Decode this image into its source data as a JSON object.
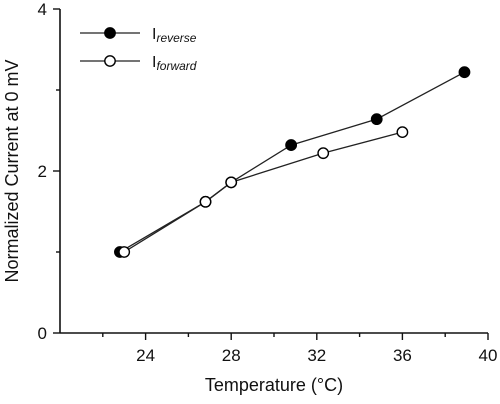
{
  "chart_data": {
    "type": "line",
    "xlabel": "Temperature (°C)",
    "ylabel": "Normalized Current at 0 mV",
    "xlim": [
      20,
      40
    ],
    "ylim": [
      0,
      4
    ],
    "xticks": [
      24,
      28,
      32,
      36,
      40
    ],
    "yticks": [
      0,
      2,
      4
    ],
    "legend_position": "top-left",
    "series": [
      {
        "name": "I",
        "name_subscript": "reverse",
        "marker": "filled-circle",
        "color": "#000000",
        "x": [
          22.8,
          26.8,
          28.0,
          30.8,
          34.8,
          38.9
        ],
        "y": [
          1.0,
          1.62,
          1.86,
          2.32,
          2.64,
          3.22
        ]
      },
      {
        "name": "I",
        "name_subscript": "forward",
        "marker": "open-circle",
        "color": "#000000",
        "x": [
          23.0,
          26.8,
          28.0,
          32.3,
          36.0
        ],
        "y": [
          1.0,
          1.62,
          1.86,
          2.22,
          2.48
        ]
      }
    ]
  }
}
